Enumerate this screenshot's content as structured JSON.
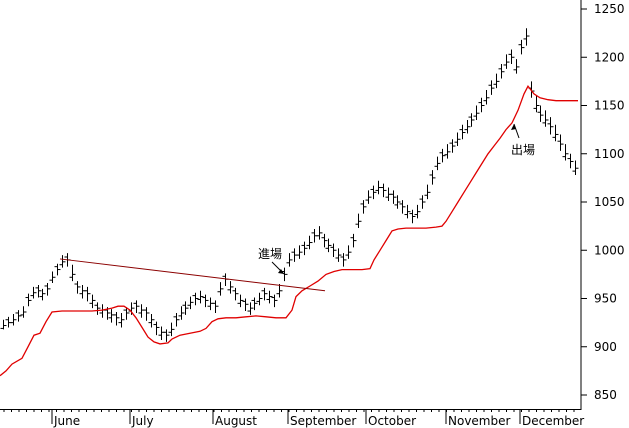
{
  "chart_data": {
    "type": "ohlc-line",
    "y_axis": {
      "position": "right",
      "ylim": [
        835,
        1255
      ],
      "ticks": [
        850,
        900,
        950,
        1000,
        1050,
        1100,
        1150,
        1200,
        1250
      ]
    },
    "x_axis": {
      "labels": [
        "June",
        "July",
        "August",
        "September",
        "October",
        "November",
        "December"
      ]
    },
    "grid": false,
    "series": [
      {
        "kind": "ohlc-bars",
        "color": "#000000",
        "points": [
          [
            922,
            928,
            918
          ],
          [
            925,
            931,
            920
          ],
          [
            928,
            934,
            922
          ],
          [
            932,
            938,
            926
          ],
          [
            936,
            942,
            930
          ],
          [
            948,
            955,
            942
          ],
          [
            956,
            962,
            950
          ],
          [
            958,
            964,
            951
          ],
          [
            955,
            960,
            948
          ],
          [
            960,
            966,
            953
          ],
          [
            972,
            978,
            966
          ],
          [
            980,
            986,
            974
          ],
          [
            988,
            995,
            982
          ],
          [
            990,
            997,
            983
          ],
          [
            975,
            985,
            968
          ],
          [
            962,
            968,
            955
          ],
          [
            958,
            964,
            950
          ],
          [
            955,
            962,
            947
          ],
          [
            948,
            954,
            940
          ],
          [
            940,
            946,
            933
          ],
          [
            938,
            944,
            930
          ],
          [
            935,
            941,
            928
          ],
          [
            933,
            939,
            925
          ],
          [
            930,
            936,
            922
          ],
          [
            928,
            935,
            920
          ],
          [
            935,
            941,
            928
          ],
          [
            940,
            946,
            933
          ],
          [
            942,
            948,
            935
          ],
          [
            938,
            944,
            930
          ],
          [
            935,
            941,
            927
          ],
          [
            928,
            934,
            920
          ],
          [
            920,
            926,
            912
          ],
          [
            915,
            921,
            907
          ],
          [
            912,
            918,
            905
          ],
          [
            918,
            925,
            911
          ],
          [
            928,
            935,
            921
          ],
          [
            935,
            942,
            928
          ],
          [
            940,
            947,
            933
          ],
          [
            946,
            952,
            939
          ],
          [
            950,
            956,
            943
          ],
          [
            952,
            958,
            945
          ],
          [
            948,
            954,
            941
          ],
          [
            945,
            951,
            938
          ],
          [
            942,
            948,
            935
          ],
          [
            960,
            967,
            953
          ],
          [
            970,
            976,
            963
          ],
          [
            962,
            968,
            955
          ],
          [
            955,
            961,
            948
          ],
          [
            948,
            954,
            941
          ],
          [
            944,
            950,
            937
          ],
          [
            940,
            946,
            933
          ],
          [
            945,
            951,
            938
          ],
          [
            950,
            956,
            943
          ],
          [
            955,
            961,
            948
          ],
          [
            952,
            958,
            945
          ],
          [
            948,
            954,
            941
          ],
          [
            958,
            965,
            951
          ],
          [
            975,
            982,
            968
          ],
          [
            990,
            997,
            983
          ],
          [
            995,
            1002,
            988
          ],
          [
            998,
            1005,
            991
          ],
          [
            1002,
            1009,
            995
          ],
          [
            1008,
            1015,
            1001
          ],
          [
            1015,
            1022,
            1008
          ],
          [
            1018,
            1025,
            1011
          ],
          [
            1010,
            1017,
            1003
          ],
          [
            1005,
            1012,
            998
          ],
          [
            1000,
            1007,
            993
          ],
          [
            995,
            1002,
            988
          ],
          [
            990,
            997,
            983
          ],
          [
            998,
            1005,
            991
          ],
          [
            1010,
            1017,
            1003
          ],
          [
            1030,
            1038,
            1023
          ],
          [
            1045,
            1052,
            1038
          ],
          [
            1055,
            1062,
            1048
          ],
          [
            1060,
            1067,
            1053
          ],
          [
            1065,
            1072,
            1058
          ],
          [
            1062,
            1069,
            1055
          ],
          [
            1058,
            1065,
            1051
          ],
          [
            1055,
            1062,
            1048
          ],
          [
            1050,
            1057,
            1043
          ],
          [
            1045,
            1052,
            1038
          ],
          [
            1040,
            1047,
            1033
          ],
          [
            1035,
            1042,
            1028
          ],
          [
            1040,
            1047,
            1033
          ],
          [
            1050,
            1057,
            1043
          ],
          [
            1060,
            1068,
            1053
          ],
          [
            1075,
            1083,
            1068
          ],
          [
            1090,
            1097,
            1083
          ],
          [
            1098,
            1105,
            1091
          ],
          [
            1102,
            1110,
            1095
          ],
          [
            1108,
            1115,
            1101
          ],
          [
            1115,
            1122,
            1108
          ],
          [
            1122,
            1130,
            1115
          ],
          [
            1128,
            1135,
            1121
          ],
          [
            1135,
            1142,
            1128
          ],
          [
            1142,
            1150,
            1135
          ],
          [
            1150,
            1158,
            1143
          ],
          [
            1158,
            1166,
            1151
          ],
          [
            1168,
            1176,
            1161
          ],
          [
            1175,
            1183,
            1168
          ],
          [
            1185,
            1193,
            1178
          ],
          [
            1195,
            1203,
            1188
          ],
          [
            1200,
            1208,
            1193
          ],
          [
            1190,
            1198,
            1183
          ],
          [
            1210,
            1218,
            1203
          ],
          [
            1222,
            1230,
            1212
          ],
          [
            1165,
            1175,
            1158
          ],
          [
            1150,
            1160,
            1143
          ],
          [
            1140,
            1150,
            1133
          ],
          [
            1135,
            1145,
            1128
          ],
          [
            1128,
            1138,
            1120
          ],
          [
            1120,
            1130,
            1113
          ],
          [
            1110,
            1120,
            1103
          ],
          [
            1100,
            1110,
            1093
          ],
          [
            1092,
            1100,
            1085
          ],
          [
            1085,
            1093,
            1078
          ]
        ]
      },
      {
        "kind": "line",
        "color": "#e00000",
        "points": [
          [
            0,
            870
          ],
          [
            6,
            875
          ],
          [
            12,
            882
          ],
          [
            22,
            888
          ],
          [
            28,
            900
          ],
          [
            34,
            912
          ],
          [
            40,
            914
          ],
          [
            46,
            926
          ],
          [
            52,
            936
          ],
          [
            62,
            937
          ],
          [
            72,
            937
          ],
          [
            82,
            937
          ],
          [
            92,
            937
          ],
          [
            102,
            938
          ],
          [
            112,
            940
          ],
          [
            118,
            942
          ],
          [
            124,
            942
          ],
          [
            130,
            938
          ],
          [
            136,
            930
          ],
          [
            142,
            920
          ],
          [
            148,
            910
          ],
          [
            154,
            905
          ],
          [
            160,
            903
          ],
          [
            168,
            904
          ],
          [
            172,
            908
          ],
          [
            180,
            912
          ],
          [
            190,
            914
          ],
          [
            200,
            916
          ],
          [
            206,
            919
          ],
          [
            212,
            926
          ],
          [
            218,
            929
          ],
          [
            226,
            930
          ],
          [
            236,
            930
          ],
          [
            246,
            931
          ],
          [
            256,
            932
          ],
          [
            266,
            931
          ],
          [
            276,
            930
          ],
          [
            286,
            930
          ],
          [
            292,
            938
          ],
          [
            296,
            952
          ],
          [
            302,
            958
          ],
          [
            310,
            963
          ],
          [
            318,
            968
          ],
          [
            326,
            975
          ],
          [
            334,
            978
          ],
          [
            342,
            980
          ],
          [
            352,
            980
          ],
          [
            362,
            980
          ],
          [
            370,
            981
          ],
          [
            374,
            990
          ],
          [
            380,
            1000
          ],
          [
            386,
            1010
          ],
          [
            392,
            1020
          ],
          [
            398,
            1022
          ],
          [
            406,
            1023
          ],
          [
            416,
            1023
          ],
          [
            426,
            1023
          ],
          [
            436,
            1024
          ],
          [
            442,
            1025
          ],
          [
            446,
            1030
          ],
          [
            452,
            1040
          ],
          [
            458,
            1050
          ],
          [
            464,
            1060
          ],
          [
            470,
            1070
          ],
          [
            476,
            1080
          ],
          [
            482,
            1090
          ],
          [
            488,
            1100
          ],
          [
            494,
            1108
          ],
          [
            500,
            1116
          ],
          [
            506,
            1125
          ],
          [
            512,
            1132
          ],
          [
            518,
            1145
          ],
          [
            524,
            1162
          ],
          [
            528,
            1170
          ],
          [
            534,
            1162
          ],
          [
            540,
            1158
          ],
          [
            548,
            1156
          ],
          [
            556,
            1155
          ],
          [
            566,
            1155
          ],
          [
            578,
            1155
          ]
        ]
      },
      {
        "kind": "line",
        "color": "#8b0000",
        "points": [
          [
            60,
            991
          ],
          [
            325,
            958
          ]
        ]
      }
    ],
    "annotations": [
      {
        "text": "進場",
        "target": [
          284,
          968
        ]
      },
      {
        "text": "出場",
        "target": [
          512,
          1134
        ]
      }
    ]
  }
}
